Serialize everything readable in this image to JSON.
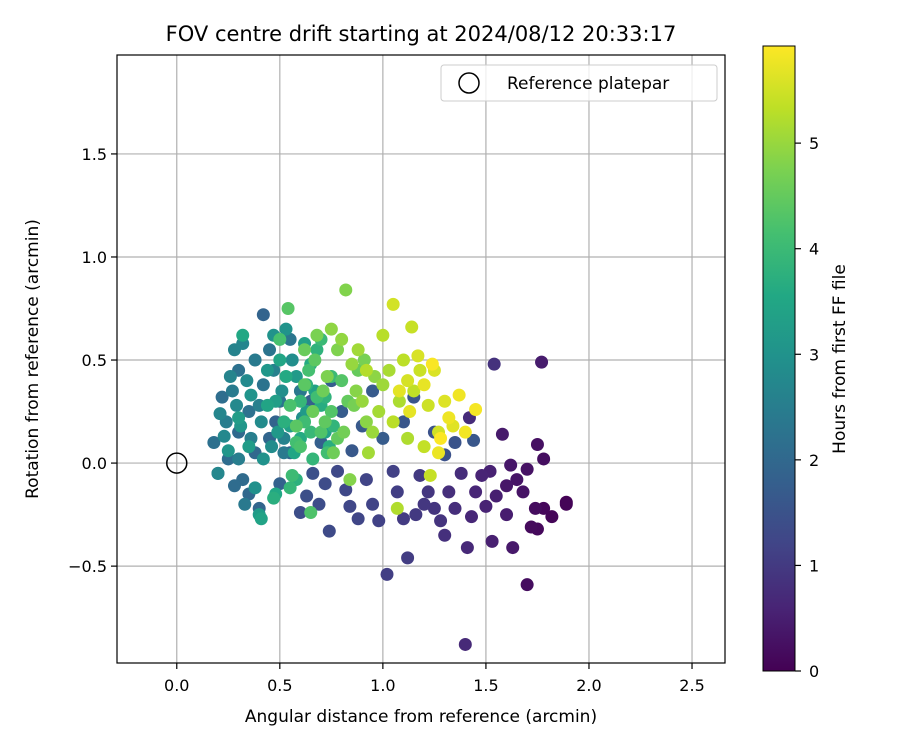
{
  "chart_data": {
    "type": "scatter",
    "title": "FOV centre drift starting at 2024/08/12 20:33:17",
    "xlabel": "Angular distance from reference (arcmin)",
    "ylabel": "Rotation from reference (arcmin)",
    "xlim": [
      -0.29,
      2.66
    ],
    "ylim": [
      -0.97,
      1.98
    ],
    "xticks": [
      0.0,
      0.5,
      1.0,
      1.5,
      2.0,
      2.5
    ],
    "xtick_labels": [
      "0.0",
      "0.5",
      "1.0",
      "1.5",
      "2.0",
      "2.5"
    ],
    "yticks": [
      -0.5,
      0.0,
      0.5,
      1.0,
      1.5
    ],
    "ytick_labels": [
      "−0.5",
      "0.0",
      "0.5",
      "1.0",
      "1.5"
    ],
    "grid": true,
    "legend": {
      "position": "top-right",
      "entries": [
        {
          "label": "Reference platepar",
          "marker": "open-circle"
        }
      ]
    },
    "reference_point": {
      "x": 0.0,
      "y": 0.0
    },
    "colorbar": {
      "label": "Hours from first FF file",
      "colormap": "viridis",
      "range": [
        0,
        5.92
      ],
      "ticks": [
        0,
        1,
        2,
        3,
        4,
        5
      ],
      "tick_labels": [
        "0",
        "1",
        "2",
        "3",
        "4",
        "5"
      ]
    },
    "points": [
      [
        1.89,
        -0.19,
        0.02
      ],
      [
        1.89,
        -0.2,
        0.05
      ],
      [
        1.82,
        -0.26,
        0.08
      ],
      [
        1.78,
        -0.22,
        0.1
      ],
      [
        1.75,
        -0.32,
        0.12
      ],
      [
        1.72,
        -0.31,
        0.15
      ],
      [
        1.74,
        -0.22,
        0.18
      ],
      [
        1.7,
        -0.59,
        0.2
      ],
      [
        1.78,
        0.02,
        0.22
      ],
      [
        1.75,
        0.09,
        0.25
      ],
      [
        1.7,
        -0.03,
        0.28
      ],
      [
        1.68,
        -0.14,
        0.3
      ],
      [
        1.65,
        -0.08,
        0.32
      ],
      [
        1.62,
        -0.01,
        0.35
      ],
      [
        1.6,
        -0.11,
        0.38
      ],
      [
        1.63,
        -0.41,
        0.4
      ],
      [
        1.58,
        0.14,
        0.42
      ],
      [
        1.77,
        0.49,
        0.45
      ],
      [
        1.6,
        -0.25,
        0.48
      ],
      [
        1.55,
        -0.16,
        0.5
      ],
      [
        1.53,
        -0.38,
        0.52
      ],
      [
        1.52,
        -0.04,
        0.55
      ],
      [
        1.5,
        -0.21,
        0.58
      ],
      [
        1.48,
        -0.06,
        0.6
      ],
      [
        1.45,
        -0.14,
        0.62
      ],
      [
        1.43,
        -0.26,
        0.65
      ],
      [
        1.41,
        -0.41,
        0.68
      ],
      [
        1.4,
        -0.88,
        0.7
      ],
      [
        1.42,
        0.22,
        0.72
      ],
      [
        1.38,
        -0.05,
        0.75
      ],
      [
        1.35,
        -0.22,
        0.78
      ],
      [
        1.32,
        -0.14,
        0.8
      ],
      [
        1.3,
        -0.35,
        0.82
      ],
      [
        1.54,
        0.48,
        0.85
      ],
      [
        1.28,
        -0.28,
        0.88
      ],
      [
        1.25,
        -0.22,
        0.9
      ],
      [
        1.22,
        -0.14,
        0.92
      ],
      [
        1.2,
        -0.2,
        0.95
      ],
      [
        1.16,
        -0.25,
        0.98
      ],
      [
        1.18,
        -0.06,
        1.0
      ],
      [
        1.1,
        -0.27,
        1.02
      ],
      [
        1.12,
        -0.46,
        1.05
      ],
      [
        1.07,
        -0.14,
        1.08
      ],
      [
        1.02,
        -0.54,
        1.1
      ],
      [
        1.05,
        -0.04,
        1.12
      ],
      [
        0.98,
        -0.28,
        1.15
      ],
      [
        0.95,
        -0.2,
        1.18
      ],
      [
        0.92,
        -0.08,
        1.2
      ],
      [
        0.88,
        -0.27,
        1.22
      ],
      [
        0.84,
        -0.21,
        1.25
      ],
      [
        0.82,
        -0.13,
        1.28
      ],
      [
        0.78,
        -0.04,
        1.3
      ],
      [
        0.74,
        -0.33,
        1.32
      ],
      [
        0.72,
        -0.1,
        1.35
      ],
      [
        0.69,
        -0.2,
        1.38
      ],
      [
        0.6,
        -0.24,
        1.4
      ],
      [
        0.63,
        -0.16,
        1.42
      ],
      [
        0.66,
        -0.05,
        1.45
      ],
      [
        1.3,
        0.04,
        1.48
      ],
      [
        1.25,
        0.15,
        1.5
      ],
      [
        1.35,
        0.1,
        1.52
      ],
      [
        1.15,
        0.32,
        1.55
      ],
      [
        1.1,
        0.2,
        1.58
      ],
      [
        1.44,
        0.11,
        1.6
      ],
      [
        0.85,
        0.06,
        1.62
      ],
      [
        0.9,
        0.18,
        1.65
      ],
      [
        0.95,
        0.35,
        1.68
      ],
      [
        1.0,
        0.12,
        1.7
      ],
      [
        0.8,
        0.25,
        1.72
      ],
      [
        0.75,
        0.4,
        1.75
      ],
      [
        0.7,
        0.1,
        1.78
      ],
      [
        0.65,
        0.3,
        1.8
      ],
      [
        0.55,
        0.05,
        1.82
      ],
      [
        0.5,
        -0.1,
        1.85
      ],
      [
        0.48,
        0.2,
        1.88
      ],
      [
        0.42,
        0.72,
        1.9
      ],
      [
        0.45,
        0.12,
        1.92
      ],
      [
        0.4,
        -0.22,
        1.95
      ],
      [
        0.35,
        -0.15,
        1.98
      ],
      [
        0.38,
        0.05,
        2.0
      ],
      [
        0.3,
        0.15,
        2.02
      ],
      [
        0.32,
        -0.08,
        2.05
      ],
      [
        0.28,
        -0.11,
        2.08
      ],
      [
        0.25,
        0.02,
        2.1
      ],
      [
        0.22,
        0.32,
        2.12
      ],
      [
        0.2,
        -0.05,
        2.15
      ],
      [
        0.18,
        0.1,
        2.18
      ],
      [
        0.3,
        0.45,
        2.2
      ],
      [
        0.35,
        0.25,
        2.22
      ],
      [
        0.42,
        0.38,
        2.25
      ],
      [
        0.45,
        0.55,
        2.28
      ],
      [
        0.5,
        0.3,
        2.3
      ],
      [
        0.55,
        0.6,
        2.32
      ],
      [
        0.6,
        0.35,
        2.35
      ],
      [
        0.52,
        0.05,
        2.38
      ],
      [
        0.33,
        -0.2,
        2.4
      ],
      [
        0.38,
        0.5,
        2.42
      ],
      [
        0.27,
        0.35,
        2.45
      ],
      [
        0.24,
        0.2,
        2.48
      ],
      [
        0.3,
        0.02,
        2.5
      ],
      [
        0.36,
        0.12,
        2.52
      ],
      [
        0.4,
        0.28,
        2.55
      ],
      [
        0.47,
        0.45,
        2.58
      ],
      [
        0.52,
        0.12,
        2.6
      ],
      [
        0.28,
        0.55,
        2.62
      ],
      [
        0.26,
        0.42,
        2.65
      ],
      [
        0.32,
        0.58,
        2.68
      ],
      [
        0.21,
        0.24,
        2.7
      ],
      [
        0.2,
        -0.05,
        2.72
      ],
      [
        0.23,
        0.13,
        2.75
      ],
      [
        0.29,
        0.28,
        2.78
      ],
      [
        0.34,
        0.4,
        2.8
      ],
      [
        0.41,
        0.2,
        2.82
      ],
      [
        0.46,
        0.08,
        2.85
      ],
      [
        0.51,
        0.35,
        2.88
      ],
      [
        0.56,
        0.5,
        2.9
      ],
      [
        0.61,
        0.22,
        2.92
      ],
      [
        0.38,
        -0.12,
        2.95
      ],
      [
        0.42,
        0.02,
        2.98
      ],
      [
        0.47,
        0.62,
        3.0
      ],
      [
        0.53,
        0.65,
        3.02
      ],
      [
        0.36,
        0.33,
        3.05
      ],
      [
        0.31,
        0.18,
        3.08
      ],
      [
        0.25,
        0.06,
        3.1
      ],
      [
        0.44,
        0.45,
        3.12
      ],
      [
        0.49,
        0.15,
        3.15
      ],
      [
        0.58,
        0.42,
        3.18
      ],
      [
        0.63,
        0.25,
        3.2
      ],
      [
        0.4,
        -0.25,
        3.22
      ],
      [
        0.35,
        0.08,
        3.25
      ],
      [
        0.3,
        0.22,
        3.28
      ],
      [
        0.48,
        0.3,
        3.3
      ],
      [
        0.55,
        0.18,
        3.32
      ],
      [
        0.62,
        0.58,
        3.35
      ],
      [
        0.67,
        0.35,
        3.38
      ],
      [
        0.72,
        0.15,
        3.4
      ],
      [
        0.41,
        -0.27,
        3.42
      ],
      [
        0.44,
        0.28,
        3.45
      ],
      [
        0.5,
        0.5,
        3.48
      ],
      [
        0.57,
        0.05,
        3.5
      ],
      [
        0.32,
        0.62,
        3.52
      ],
      [
        0.48,
        -0.15,
        3.55
      ],
      [
        0.53,
        0.42,
        3.58
      ],
      [
        0.6,
        0.12,
        3.6
      ],
      [
        0.65,
        0.48,
        3.62
      ],
      [
        0.7,
        0.28,
        3.65
      ],
      [
        0.74,
        0.08,
        3.68
      ],
      [
        0.47,
        -0.17,
        3.7
      ],
      [
        0.52,
        0.2,
        3.72
      ],
      [
        0.58,
        -0.08,
        3.75
      ],
      [
        0.63,
        0.38,
        3.78
      ],
      [
        0.68,
        0.55,
        3.8
      ],
      [
        0.72,
        0.32,
        3.82
      ],
      [
        0.76,
        0.18,
        3.85
      ],
      [
        0.66,
        0.02,
        3.88
      ],
      [
        0.55,
        -0.12,
        3.9
      ],
      [
        0.6,
        0.3,
        3.92
      ],
      [
        0.65,
        0.15,
        3.95
      ],
      [
        0.7,
        0.6,
        3.98
      ],
      [
        0.75,
        0.42,
        4.0
      ],
      [
        0.56,
        -0.06,
        4.02
      ],
      [
        0.62,
        0.2,
        4.05
      ],
      [
        0.68,
        0.32,
        4.08
      ],
      [
        0.73,
        0.05,
        4.1
      ],
      [
        0.58,
        0.1,
        4.12
      ],
      [
        0.64,
        0.45,
        4.15
      ],
      [
        0.5,
        0.6,
        4.18
      ],
      [
        0.55,
        0.28,
        4.2
      ],
      [
        0.6,
        0.08,
        4.22
      ],
      [
        0.65,
        -0.24,
        4.25
      ],
      [
        0.7,
        0.15,
        4.28
      ],
      [
        0.75,
        0.25,
        4.3
      ],
      [
        0.8,
        0.4,
        4.32
      ],
      [
        0.54,
        0.75,
        4.35
      ],
      [
        0.58,
        0.18,
        4.38
      ],
      [
        0.62,
        0.38,
        4.4
      ],
      [
        0.67,
        0.5,
        4.42
      ],
      [
        0.72,
        0.2,
        4.45
      ],
      [
        0.78,
        0.12,
        4.48
      ],
      [
        0.83,
        0.3,
        4.5
      ],
      [
        0.88,
        0.45,
        4.52
      ],
      [
        0.62,
        0.55,
        4.55
      ],
      [
        0.66,
        0.25,
        4.58
      ],
      [
        0.71,
        0.35,
        4.6
      ],
      [
        0.76,
        0.05,
        4.62
      ],
      [
        0.81,
        0.15,
        4.65
      ],
      [
        0.86,
        0.28,
        4.68
      ],
      [
        0.91,
        0.5,
        4.7
      ],
      [
        0.68,
        0.62,
        4.72
      ],
      [
        0.73,
        0.42,
        4.75
      ],
      [
        0.78,
        0.55,
        4.78
      ],
      [
        0.82,
        0.84,
        4.8
      ],
      [
        0.84,
        -0.08,
        4.82
      ],
      [
        0.87,
        0.35,
        4.85
      ],
      [
        0.92,
        0.2,
        4.88
      ],
      [
        0.96,
        0.42,
        4.9
      ],
      [
        0.75,
        0.65,
        4.92
      ],
      [
        0.8,
        0.6,
        4.95
      ],
      [
        0.85,
        0.48,
        4.98
      ],
      [
        0.9,
        0.3,
        5.0
      ],
      [
        0.95,
        0.15,
        5.02
      ],
      [
        1.0,
        0.38,
        5.05
      ],
      [
        0.88,
        0.55,
        5.08
      ],
      [
        0.93,
        0.05,
        5.1
      ],
      [
        0.98,
        0.25,
        5.12
      ],
      [
        1.03,
        0.45,
        5.15
      ],
      [
        1.08,
        0.3,
        5.18
      ],
      [
        1.12,
        0.12,
        5.2
      ],
      [
        1.07,
        -0.22,
        5.22
      ],
      [
        0.92,
        0.45,
        5.25
      ],
      [
        1.0,
        0.62,
        5.28
      ],
      [
        1.05,
        0.2,
        5.3
      ],
      [
        1.1,
        0.5,
        5.32
      ],
      [
        1.15,
        0.35,
        5.35
      ],
      [
        1.2,
        0.08,
        5.38
      ],
      [
        1.23,
        -0.06,
        5.4
      ],
      [
        1.14,
        0.66,
        5.42
      ],
      [
        1.18,
        0.45,
        5.45
      ],
      [
        1.22,
        0.28,
        5.48
      ],
      [
        1.27,
        0.15,
        5.5
      ],
      [
        1.05,
        0.77,
        5.52
      ],
      [
        1.12,
        0.4,
        5.55
      ],
      [
        1.17,
        0.52,
        5.58
      ],
      [
        1.25,
        0.45,
        5.6
      ],
      [
        1.3,
        0.3,
        5.62
      ],
      [
        1.34,
        0.18,
        5.65
      ],
      [
        1.08,
        0.35,
        5.68
      ],
      [
        1.13,
        0.25,
        5.7
      ],
      [
        1.2,
        0.38,
        5.72
      ],
      [
        1.27,
        0.05,
        5.75
      ],
      [
        1.32,
        0.22,
        5.78
      ],
      [
        1.37,
        0.33,
        5.8
      ],
      [
        1.4,
        0.15,
        5.82
      ],
      [
        1.45,
        0.26,
        5.85
      ],
      [
        1.24,
        0.48,
        5.88
      ],
      [
        1.28,
        0.12,
        5.9
      ]
    ]
  }
}
